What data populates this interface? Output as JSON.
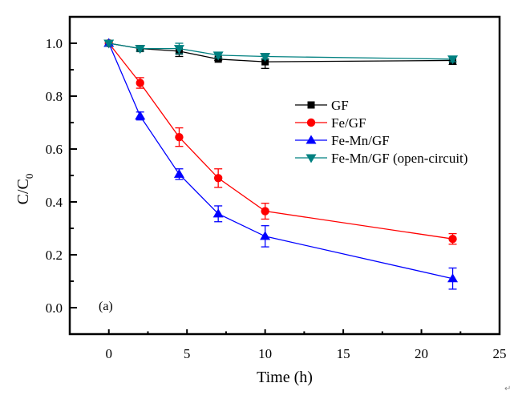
{
  "chart_data": {
    "type": "line",
    "title": "",
    "panel_label": "(a)",
    "xlabel": "Time (h)",
    "ylabel_main": "C/C",
    "ylabel_sub": "0",
    "xlim": [
      -2.5,
      25
    ],
    "ylim": [
      -0.1,
      1.1
    ],
    "xticks": [
      0,
      5,
      10,
      15,
      20,
      25
    ],
    "xtick_labels": [
      "0",
      "5",
      "10",
      "15",
      "20",
      "25"
    ],
    "yticks": [
      0.0,
      0.2,
      0.4,
      0.6,
      0.8,
      1.0
    ],
    "ytick_labels": [
      "0.0",
      "0.2",
      "0.4",
      "0.6",
      "0.8",
      "1.0"
    ],
    "x_minor_step": 2.5,
    "y_minor_step": 0.1,
    "grid": false,
    "legend_position": "center-right",
    "series": [
      {
        "name": "GF",
        "color": "#000000",
        "marker": "square",
        "x": [
          0,
          2,
          4.5,
          7,
          10,
          22
        ],
        "y": [
          1.0,
          0.98,
          0.97,
          0.94,
          0.93,
          0.935
        ],
        "err": [
          0.01,
          0.01,
          0.02,
          0.005,
          0.025,
          0.015
        ]
      },
      {
        "name": "Fe/GF",
        "color": "#ff0000",
        "marker": "circle",
        "x": [
          0,
          2,
          4.5,
          7,
          10,
          22
        ],
        "y": [
          1.0,
          0.85,
          0.645,
          0.49,
          0.365,
          0.26
        ],
        "err": [
          0.01,
          0.02,
          0.035,
          0.035,
          0.03,
          0.02
        ]
      },
      {
        "name": "Fe-Mn/GF",
        "color": "#0000ff",
        "marker": "triangle-up",
        "x": [
          0,
          2,
          4.5,
          7,
          10,
          22
        ],
        "y": [
          1.0,
          0.725,
          0.505,
          0.355,
          0.27,
          0.11
        ],
        "err": [
          0.01,
          0.015,
          0.02,
          0.03,
          0.04,
          0.04
        ]
      },
      {
        "name": "Fe-Mn/GF (open-circuit)",
        "color": "#008080",
        "marker": "triangle-down",
        "x": [
          0,
          2,
          4.5,
          7,
          10,
          22
        ],
        "y": [
          1.0,
          0.98,
          0.98,
          0.955,
          0.95,
          0.94
        ],
        "err": [
          0.01,
          0.01,
          0.02,
          0.01,
          0.01,
          0.01
        ]
      }
    ]
  }
}
